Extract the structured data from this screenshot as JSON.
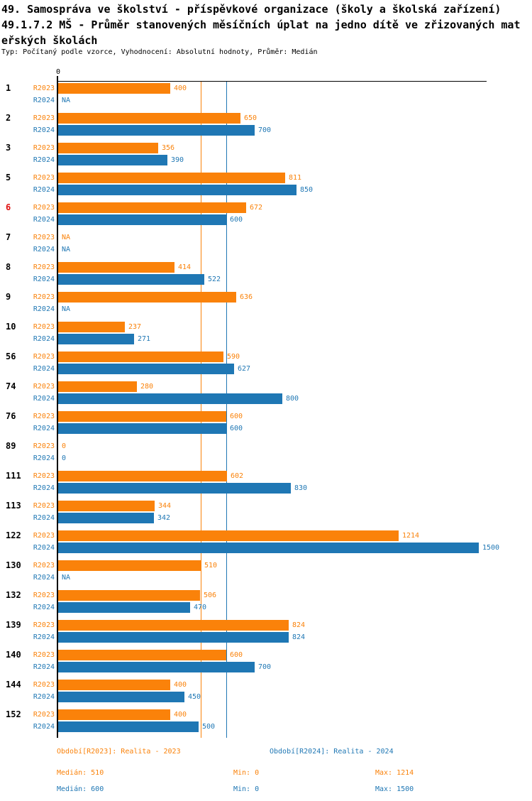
{
  "title": {
    "lines": [
      "49. Samospráva ve školství - příspěvkové organizace (školy a školská zařízení)",
      "49.1.7.2 MŠ - Průměr stanovených měsíčních úplat na jedno dítě ve zřizovaných mat",
      "eřských školách"
    ],
    "subtitle": "Typ: Počítaný podle vzorce, Vyhodnocení: Absolutní hodnoty, Průměr: Medián"
  },
  "colors": {
    "r2023": "#FA820A",
    "r2024": "#1F77B4",
    "highlight_row": "#E01010",
    "axis": "#000000"
  },
  "chart_data": {
    "type": "bar",
    "orientation": "horizontal",
    "x_axis": {
      "tick_labels": [
        "0"
      ],
      "approx_max": 1530,
      "grid": false
    },
    "categories": [
      "1",
      "2",
      "3",
      "5",
      "6",
      "7",
      "8",
      "9",
      "10",
      "56",
      "74",
      "76",
      "89",
      "111",
      "113",
      "122",
      "130",
      "132",
      "139",
      "140",
      "144",
      "152"
    ],
    "highlighted_category": "6",
    "na_label": "NA",
    "series": [
      {
        "name": "R2023",
        "legend": "Období[R2023]: Realita - 2023",
        "values": [
          400,
          650,
          356,
          811,
          672,
          null,
          414,
          636,
          237,
          590,
          280,
          600,
          0,
          602,
          344,
          1214,
          510,
          506,
          824,
          600,
          400,
          400
        ],
        "median": 510,
        "min": 0,
        "max": 1214
      },
      {
        "name": "R2024",
        "legend": "Období[R2024]: Realita - 2024",
        "values": [
          null,
          700,
          390,
          850,
          600,
          null,
          522,
          null,
          271,
          627,
          800,
          600,
          0,
          830,
          342,
          1500,
          null,
          470,
          824,
          700,
          450,
          500
        ],
        "median": 600,
        "min": 0,
        "max": 1500
      }
    ],
    "reference_lines": [
      {
        "series": "R2023",
        "value": 510
      },
      {
        "series": "R2024",
        "value": 600
      }
    ]
  },
  "legend": {
    "r2023": "Období[R2023]: Realita - 2023",
    "r2024": "Období[R2024]: Realita - 2024"
  },
  "stats": {
    "rows": [
      {
        "series": "R2023",
        "median": "Medián: 510",
        "min": "Min: 0",
        "max": "Max: 1214"
      },
      {
        "series": "R2024",
        "median": "Medián: 600",
        "min": "Min: 0",
        "max": "Max: 1500"
      }
    ]
  }
}
